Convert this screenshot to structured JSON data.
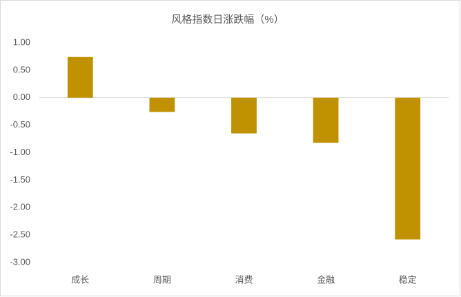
{
  "chart_data": {
    "type": "bar",
    "title": "风格指数日涨跌幅（%）",
    "categories": [
      "成长",
      "周期",
      "消费",
      "金融",
      "稳定"
    ],
    "values": [
      0.74,
      -0.26,
      -0.65,
      -0.82,
      -2.58
    ],
    "color": "#c09100",
    "ylim": [
      -3,
      1
    ],
    "yticks": [
      {
        "value": 1,
        "label": "1.00"
      },
      {
        "value": 0.5,
        "label": "0.50"
      },
      {
        "value": 0,
        "label": "0.00"
      },
      {
        "value": -0.5,
        "label": "-0.50"
      },
      {
        "value": -1,
        "label": "-1.00"
      },
      {
        "value": -1.5,
        "label": "-1.50"
      },
      {
        "value": -2,
        "label": "-2.00"
      },
      {
        "value": -2.5,
        "label": "-2.50"
      },
      {
        "value": -3,
        "label": "-3.00"
      }
    ],
    "grid": false
  }
}
